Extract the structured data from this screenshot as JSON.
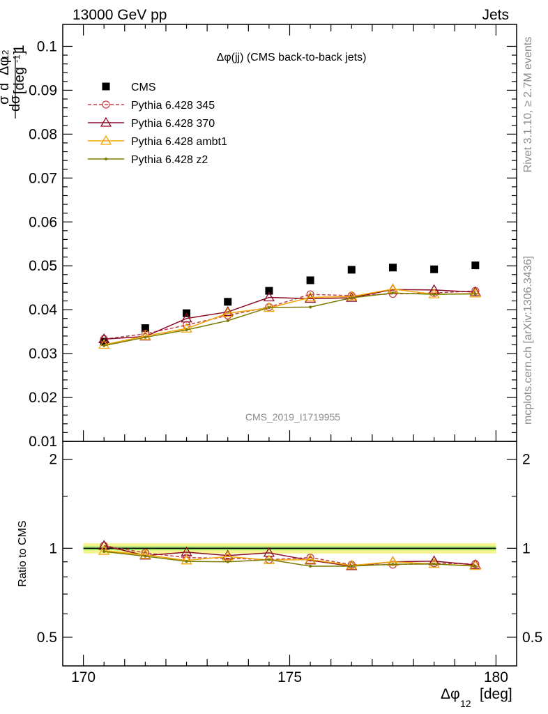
{
  "header": {
    "left": "13000 GeV pp",
    "right": "Jets",
    "plot_title": "Δφ(jj) (CMS back-to-back jets)",
    "analysis_id": "CMS_2019_I1719955",
    "side_top": "Rivet 3.1.10, ≥ 2.7M events",
    "side_bottom": "mcplots.cern.ch [arXiv:1306.3436]"
  },
  "chart_data": [
    {
      "type": "scatter",
      "panel": "main",
      "title": "Δφ(jj) (CMS back-to-back jets)",
      "xlabel": "Δφ₁₂ [deg]",
      "ylabel": "1/σ dσ/dΔφ₁₂ [deg⁻¹]",
      "xlim": [
        169.5,
        180.5
      ],
      "ylim": [
        0.01,
        0.105
      ],
      "yticks": [
        "0.01",
        "0.02",
        "0.03",
        "0.04",
        "0.05",
        "0.06",
        "0.07",
        "0.08",
        "0.09",
        "0.1"
      ],
      "legend_position": "top-left",
      "x": [
        170.5,
        171.5,
        172.5,
        173.5,
        174.5,
        175.5,
        176.5,
        177.5,
        178.5,
        179.5
      ],
      "series": [
        {
          "name": "CMS",
          "color": "#000000",
          "marker": "square",
          "values": [
            0.0327,
            0.0358,
            0.0392,
            0.0418,
            0.0443,
            0.0467,
            0.0491,
            0.0496,
            0.0492,
            0.0501
          ]
        },
        {
          "name": "Pythia 6.428 345",
          "color": "#c0424a",
          "marker": "open-circle",
          "dashed": true,
          "values": [
            0.0333,
            0.0345,
            0.0365,
            0.0387,
            0.0406,
            0.0435,
            0.0432,
            0.0436,
            0.0438,
            0.0443
          ]
        },
        {
          "name": "Pythia 6.428 370",
          "color": "#8b0a26",
          "marker": "open-triangle",
          "values": [
            0.0333,
            0.0339,
            0.038,
            0.0395,
            0.0428,
            0.0425,
            0.0427,
            0.0446,
            0.0445,
            0.044
          ]
        },
        {
          "name": "Pythia 6.428 ambt1",
          "color": "#f0a500",
          "marker": "open-triangle",
          "values": [
            0.032,
            0.034,
            0.0357,
            0.0392,
            0.0404,
            0.0428,
            0.043,
            0.0447,
            0.0435,
            0.0437
          ]
        },
        {
          "name": "Pythia 6.428 z2",
          "color": "#7a7a00",
          "marker": "dot",
          "values": [
            0.0318,
            0.0337,
            0.0354,
            0.0375,
            0.0405,
            0.0406,
            0.0427,
            0.0438,
            0.0435,
            0.0436
          ]
        }
      ]
    },
    {
      "type": "line",
      "panel": "ratio",
      "ylabel": "Ratio to CMS",
      "xlim": [
        169.5,
        180.5
      ],
      "ylim": [
        0.4,
        2.3
      ],
      "log_y": true,
      "yticks": [
        "0.5",
        "1",
        "2"
      ],
      "xticks": [
        "170",
        "175",
        "180"
      ],
      "x": [
        170.5,
        171.5,
        172.5,
        173.5,
        174.5,
        175.5,
        176.5,
        177.5,
        178.5,
        179.5
      ],
      "series": [
        {
          "name": "Pythia 6.428 345",
          "values": [
            1.02,
            0.965,
            0.93,
            0.925,
            0.915,
            0.93,
            0.88,
            0.88,
            0.89,
            0.885
          ]
        },
        {
          "name": "Pythia 6.428 370",
          "values": [
            1.02,
            0.945,
            0.97,
            0.945,
            0.965,
            0.91,
            0.87,
            0.9,
            0.905,
            0.878
          ]
        },
        {
          "name": "Pythia 6.428 ambt1",
          "values": [
            0.98,
            0.95,
            0.91,
            0.938,
            0.912,
            0.915,
            0.875,
            0.9,
            0.885,
            0.872
          ]
        },
        {
          "name": "Pythia 6.428 z2",
          "values": [
            0.975,
            0.94,
            0.903,
            0.9,
            0.915,
            0.87,
            0.87,
            0.883,
            0.885,
            0.87
          ]
        }
      ],
      "reference_band": {
        "low": 0.96,
        "high": 1.04,
        "inner_low": 0.985,
        "inner_high": 1.015
      }
    }
  ]
}
